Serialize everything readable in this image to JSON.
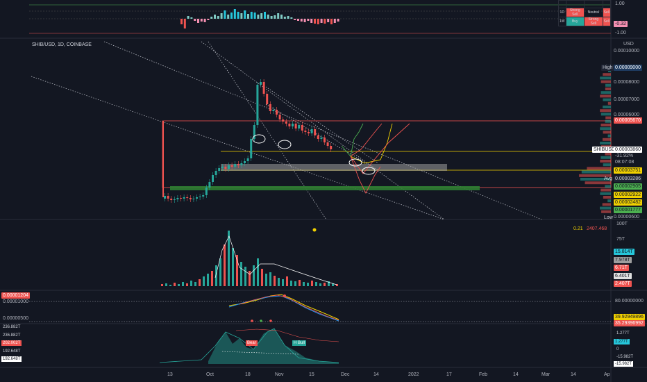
{
  "symbol": "SHIB/USD, 1D, COINBASE",
  "currency": "USD",
  "ticker_tag": "SHIBUSD",
  "osc_top": {
    "axis": [
      "1.00",
      "-1.00"
    ],
    "value_tag": "-0.32"
  },
  "ratings_table": {
    "rows": [
      {
        "tf": "1D",
        "a": "Strong Sell",
        "b": "Neutral",
        "c": "Sell"
      },
      {
        "tf": "1W",
        "a": "Buy",
        "b": "Strong Sell",
        "c": "Sell"
      }
    ]
  },
  "price_axis": [
    "0.00010000",
    "0.00008000",
    "0.00007000",
    "0.00006000",
    "0.00000600"
  ],
  "price_tags": {
    "high_label": "High",
    "high": "0.00009000",
    "p1": "0.00005670",
    "current": "0.00003860",
    "change": "-31.92%",
    "countdown": "08:07:08",
    "p2": "0.00003751",
    "avg_label": "Avg",
    "avg": "0.00003286",
    "g1": "0.00002905",
    "y1": "0.00002922",
    "y2": "0.00002482",
    "g2": "0.00001777",
    "low_label": "Low"
  },
  "volume": {
    "header_a": "0.21",
    "header_b": "2407.468",
    "axis": [
      "100T",
      "75T"
    ],
    "tags": [
      "15.814T",
      "7.978T",
      "6.71T",
      "6.401T",
      "2.407T"
    ]
  },
  "macd": {
    "left_tag": "0.00001204",
    "left_axis": [
      "0.00001000",
      "0.00000500"
    ],
    "right_axis": "80.00000000",
    "tag_y": "39.92949896",
    "tag_r": "35.29396992"
  },
  "bottom": {
    "left_tags": [
      "236.882T",
      "236.882T",
      "202.002T",
      "192.648T",
      "192.648T"
    ],
    "right_tags": [
      "1.277T",
      "1.277T",
      "0",
      "-15.982T",
      "-15.982T"
    ],
    "bear_label": "Bear",
    "bull_label": "H Bull"
  },
  "dates": [
    "13",
    "Oct",
    "18",
    "Nov",
    "15",
    "Dec",
    "14",
    "2022",
    "17",
    "Feb",
    "14",
    "Mar",
    "14",
    "Ap"
  ],
  "colors": {
    "up": "#26a69a",
    "down": "#ef5350",
    "bg": "#131722"
  }
}
